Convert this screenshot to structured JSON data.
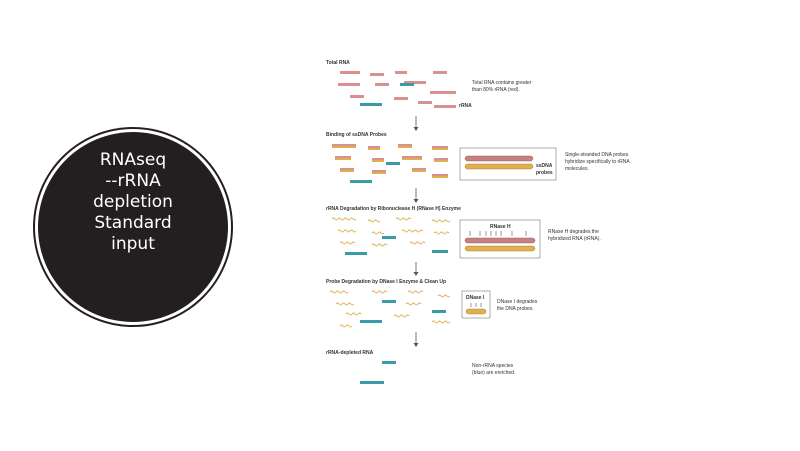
{
  "circle": {
    "lines": [
      "RNAseq",
      "--rRNA",
      "depletion",
      "Standard",
      "input"
    ],
    "color": "#231f20"
  },
  "colors": {
    "rrna": "#d89090",
    "non_rrna": "#3a9aa8",
    "probe": "#e0b050",
    "arrow": "#555555"
  },
  "steps": [
    {
      "title": "Total RNA",
      "description": [
        "Total RNA contains greater",
        "than 80% rRNA (red)."
      ],
      "label": "rRNA"
    },
    {
      "title": "Binding of ssDNA Probes",
      "description": [
        "Single-stranded DNA probes",
        "hybridize specifically to rRNA",
        "molecules."
      ],
      "label": [
        "ssDNA",
        "probes"
      ]
    },
    {
      "title": "rRNA Degradation by Ribonuclease H (RNase H) Enzyme",
      "description": [
        "RNase H degrades the",
        "hybridized RNA (rRNA)."
      ],
      "label": "RNase H"
    },
    {
      "title": "Probe Degradation by DNase I Enzyme & Clean Up",
      "description": [
        "DNase I degrades",
        "the DNA probes."
      ],
      "label": "DNase I"
    },
    {
      "title": "rRNA-depleted RNA",
      "description": [
        "Non-rRNA species",
        "(blue) are enriched."
      ]
    }
  ]
}
